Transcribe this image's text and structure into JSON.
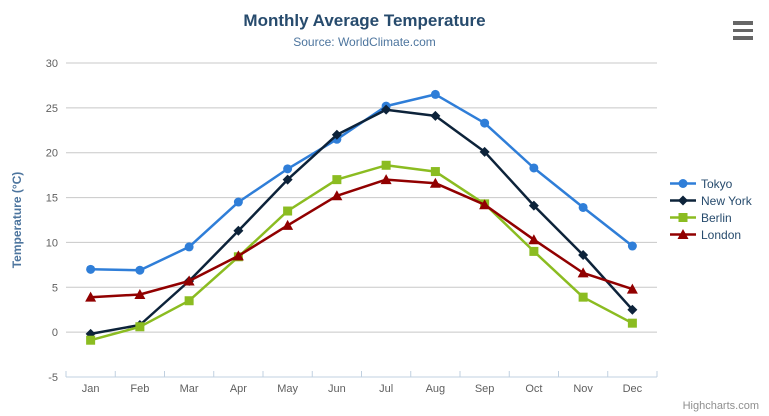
{
  "chart_data": {
    "type": "line",
    "title": "Monthly Average Temperature",
    "subtitle": "Source: WorldClimate.com",
    "xlabel": "",
    "ylabel": "Temperature (°C)",
    "ylim": [
      -5,
      30
    ],
    "ytick_step": 5,
    "ytick_labels": [
      "-5",
      "0",
      "5",
      "10",
      "15",
      "20",
      "25",
      "30"
    ],
    "grid": true,
    "legend_position": "right",
    "categories": [
      "Jan",
      "Feb",
      "Mar",
      "Apr",
      "May",
      "Jun",
      "Jul",
      "Aug",
      "Sep",
      "Oct",
      "Nov",
      "Dec"
    ],
    "series": [
      {
        "name": "Tokyo",
        "color": "#2f7ed8",
        "marker": "circle",
        "values": [
          7.0,
          6.9,
          9.5,
          14.5,
          18.2,
          21.5,
          25.2,
          26.5,
          23.3,
          18.3,
          13.9,
          9.6
        ]
      },
      {
        "name": "New York",
        "color": "#0d233a",
        "marker": "diamond",
        "values": [
          -0.2,
          0.8,
          5.7,
          11.3,
          17.0,
          22.0,
          24.8,
          24.1,
          20.1,
          14.1,
          8.6,
          2.5
        ]
      },
      {
        "name": "Berlin",
        "color": "#8bbc21",
        "marker": "square",
        "values": [
          -0.9,
          0.6,
          3.5,
          8.4,
          13.5,
          17.0,
          18.6,
          17.9,
          14.3,
          9.0,
          3.9,
          1.0
        ]
      },
      {
        "name": "London",
        "color": "#910000",
        "marker": "triangle",
        "values": [
          3.9,
          4.2,
          5.7,
          8.5,
          11.9,
          15.2,
          17.0,
          16.6,
          14.2,
          10.3,
          6.6,
          4.8
        ]
      }
    ],
    "colors": {
      "title": "#274b6d",
      "subtitle": "#4d759e",
      "axis_title": "#4d759e",
      "axis_labels": "#606060",
      "grid_line": "#c8c8c8",
      "axis_line": "#c0d0e0",
      "legend_text": "#274b6d",
      "credits_text": "#8f8f8f",
      "menu_icon": "#666666"
    }
  },
  "header": {
    "menu_icon": "hamburger-icon"
  },
  "credits": {
    "label": "Highcharts.com"
  }
}
